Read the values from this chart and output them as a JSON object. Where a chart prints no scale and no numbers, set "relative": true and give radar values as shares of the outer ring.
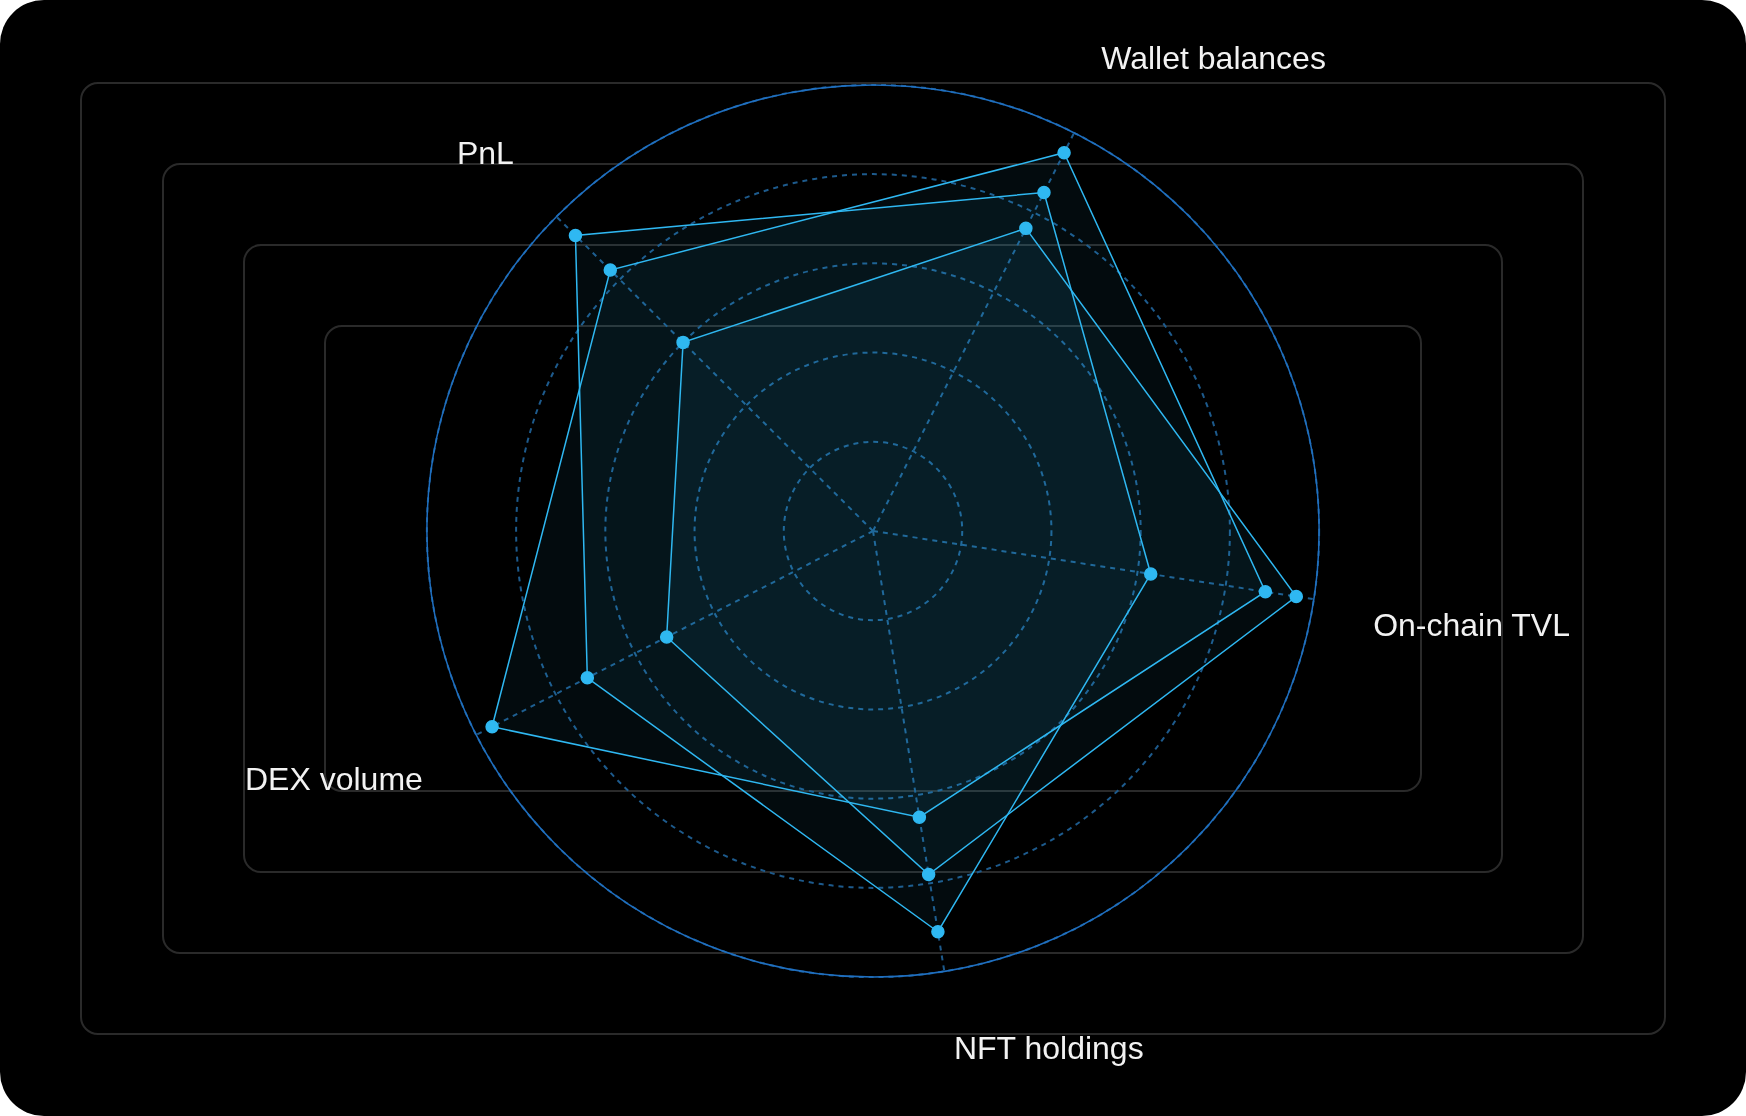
{
  "chart_data": {
    "type": "radar",
    "relative": true,
    "categories": [
      "Wallet balances",
      "On-chain TVL",
      "NFT holdings",
      "DEX volume",
      "PnL"
    ],
    "series": [
      {
        "color": "#2fb8f2",
        "values": [
          0.85,
          0.63,
          0.91,
          0.72,
          0.94
        ]
      },
      {
        "color": "#2fb8f2",
        "values": [
          0.95,
          0.89,
          0.65,
          0.96,
          0.83
        ]
      },
      {
        "color": "#2fb8f2",
        "values": [
          0.76,
          0.96,
          0.78,
          0.52,
          0.6
        ]
      }
    ],
    "grid": true,
    "marker": "circle"
  }
}
